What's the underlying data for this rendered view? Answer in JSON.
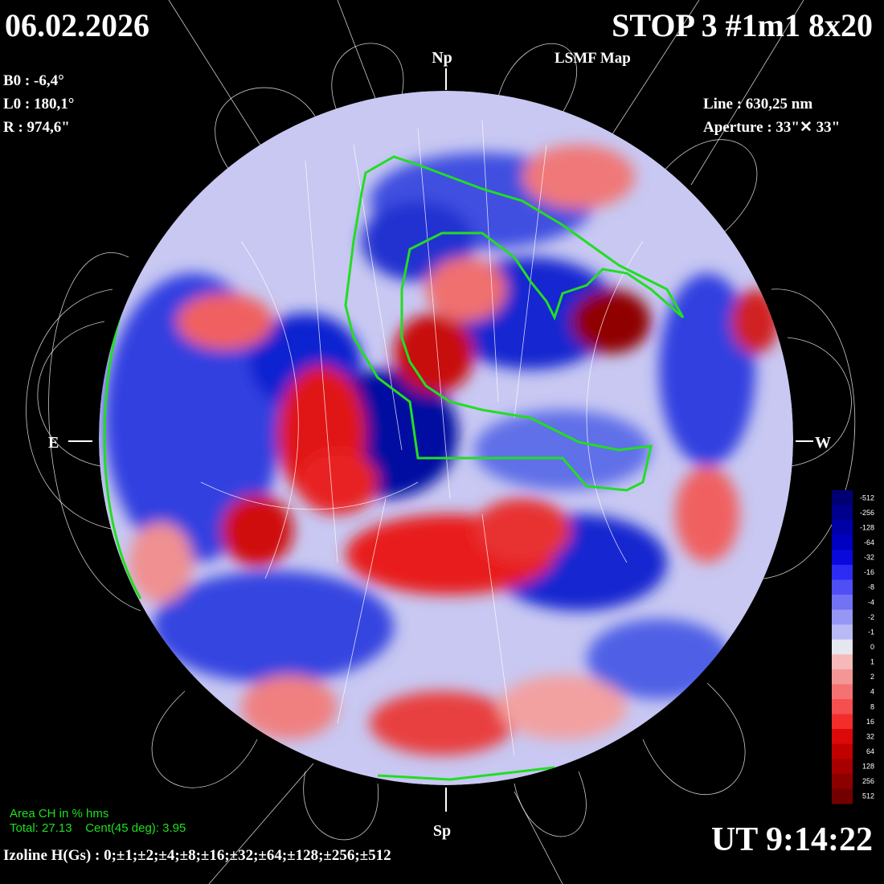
{
  "header": {
    "date": "06.02.2026",
    "title": "STOP 3 #1m1 8x20",
    "subtitle": "LSMF  Map"
  },
  "parameters": [
    "B0 : -6,4°",
    "L0 : 180,1°",
    "R  : 974,6\""
  ],
  "instrument": [
    "Line :  630,25 nm",
    "Aperture : 33\"✕ 33\""
  ],
  "directions": {
    "north": "Np",
    "south": "Sp",
    "east": "E",
    "west": "W"
  },
  "coronal_hole": [
    "Area CH in % hms",
    "Total: 27.13    Cent(45 deg): 3.95"
  ],
  "isolines": "Izoline H(Gs) : 0;±1;±2;±4;±8;±16;±32;±64;±128;±256;±512",
  "time": "UT 9:14:22",
  "color_scale": [
    "-512",
    "-256",
    "-128",
    "-64",
    "-32",
    "-16",
    "-8",
    "-4",
    "-2",
    "-1",
    "0",
    "1",
    "2",
    "4",
    "8",
    "16",
    "32",
    "64",
    "128",
    "256",
    "512"
  ]
}
